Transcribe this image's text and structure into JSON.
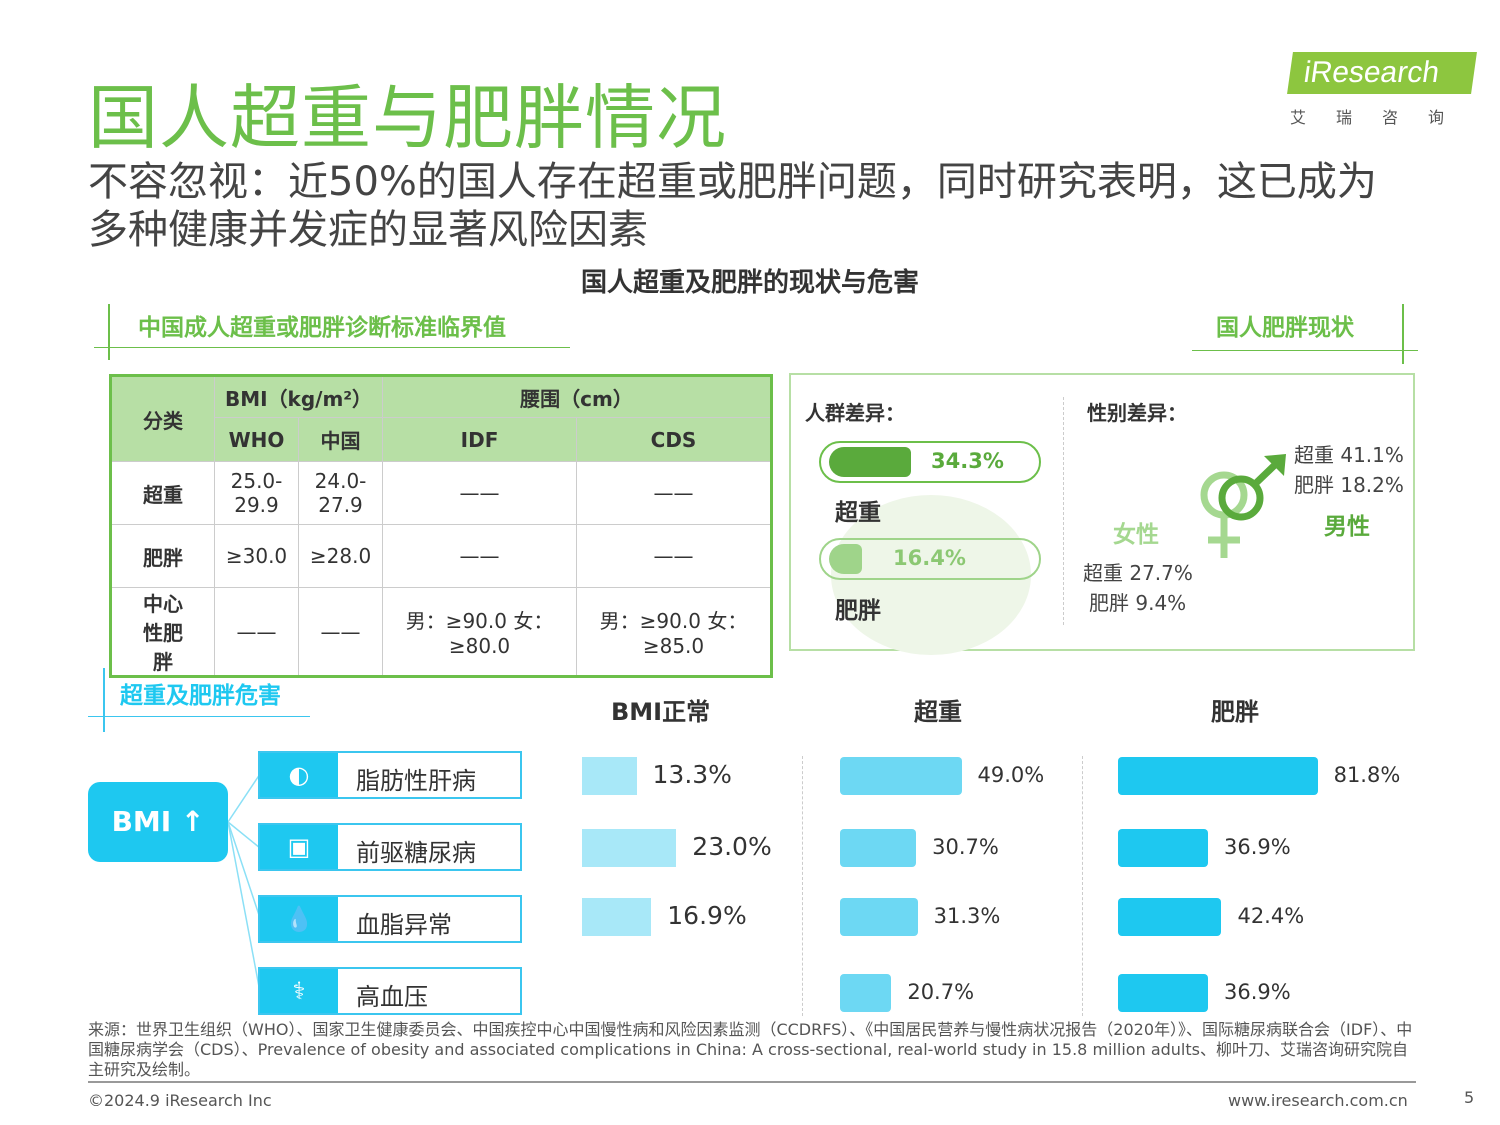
{
  "title": "国人超重与肥胖情况",
  "subtitle": "不容忽视：近50%的国人存在超重或肥胖问题，同时研究表明，这已成为多种健康并发症的显著风险因素",
  "center_title": "国人超重及肥胖的现状与危害",
  "logo": {
    "brand": "iResearch",
    "cn": "艾瑞咨询"
  },
  "criteria": {
    "heading": "中国成人超重或肥胖诊断标准临界值",
    "col_category": "分类",
    "group_bmi": "BMI（kg/m²）",
    "group_waist": "腰围（cm）",
    "cols": [
      "WHO",
      "中国",
      "IDF",
      "CDS"
    ],
    "rows": [
      {
        "label": "超重",
        "cells": [
          "25.0-29.9",
          "24.0-27.9",
          "——",
          "——"
        ]
      },
      {
        "label": "肥胖",
        "cells": [
          "≥30.0",
          "≥28.0",
          "——",
          "——"
        ]
      },
      {
        "label": "中心性肥胖",
        "cells": [
          "——",
          "——",
          "男：≥90.0 女：≥80.0",
          "男：≥90.0 女：≥85.0"
        ]
      }
    ]
  },
  "status": {
    "heading": "国人肥胖现状",
    "population_label": "人群差异：",
    "overweight": {
      "label": "超重",
      "value": "34.3%",
      "pct": 34.3
    },
    "obese": {
      "label": "肥胖",
      "value": "16.4%",
      "pct": 16.4
    },
    "gender_label": "性别差异：",
    "female": {
      "label": "女性",
      "overweight": "超重 27.7%",
      "obese": "肥胖 9.4%"
    },
    "male": {
      "label": "男性",
      "overweight": "超重 41.1%",
      "obese": "肥胖 18.2%"
    }
  },
  "harms": {
    "heading": "超重及肥胖危害",
    "bmi_button": "BMI ↑",
    "columns": [
      "BMI正常",
      "超重",
      "肥胖"
    ],
    "diseases": [
      "脂肪性肝病",
      "前驱糖尿病",
      "血脂异常",
      "高血压"
    ],
    "colors": [
      "#a8e8f8",
      "#6dd8f3",
      "#1ec8f0"
    ]
  },
  "chart_data": {
    "type": "bar",
    "categories": [
      "脂肪性肝病",
      "前驱糖尿病",
      "血脂异常",
      "高血压"
    ],
    "series": [
      {
        "name": "BMI正常",
        "values": [
          13.3,
          23.0,
          16.9,
          null
        ],
        "labels": [
          "13.3%",
          "23.0%",
          "16.9%",
          null
        ]
      },
      {
        "name": "超重",
        "values": [
          49.0,
          30.7,
          31.3,
          20.7
        ],
        "labels": [
          "49.0%",
          "30.7%",
          "31.3%",
          "20.7%"
        ]
      },
      {
        "name": "肥胖",
        "values": [
          81.8,
          36.9,
          42.4,
          36.9
        ],
        "labels": [
          "81.8%",
          "36.9%",
          "42.4%",
          "36.9%"
        ]
      }
    ]
  },
  "footer": {
    "source": "来源：世界卫生组织（WHO）、国家卫生健康委员会、中国疾控中心中国慢性病和风险因素监测（CCDRFS）、《中国居民营养与慢性病状况报告（2020年）》、国际糖尿病联合会（IDF）、中国糖尿病学会（CDS）、Prevalence of obesity and associated complications in China: A cross-sectional, real-world study in 15.8 million adults、柳叶刀、艾瑞咨询研究院自主研究及绘制。",
    "copyright": "©2024.9 iResearch Inc",
    "url": "www.iresearch.com.cn",
    "page": "5"
  }
}
